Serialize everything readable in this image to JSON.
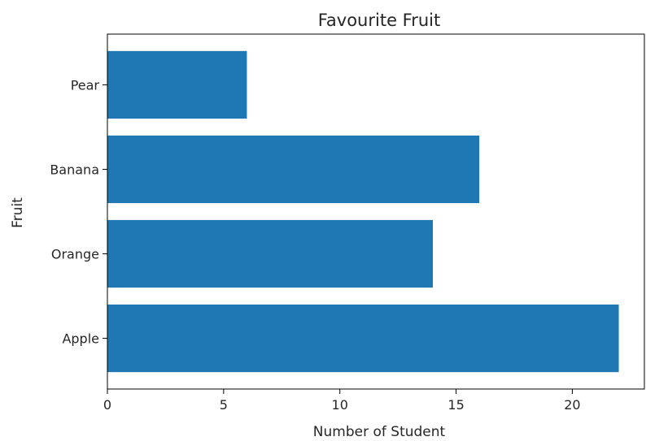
{
  "chart_data": {
    "type": "bar",
    "orientation": "horizontal",
    "title": "Favourite Fruit",
    "xlabel": "Number of Student",
    "ylabel": "Fruit",
    "categories": [
      "Apple",
      "Orange",
      "Banana",
      "Pear"
    ],
    "values": [
      22,
      14,
      16,
      6
    ],
    "xlim": [
      0,
      23.1
    ],
    "xticks": [
      0,
      5,
      10,
      15,
      20
    ],
    "grid": false,
    "bar_color": "#1f77b4"
  }
}
